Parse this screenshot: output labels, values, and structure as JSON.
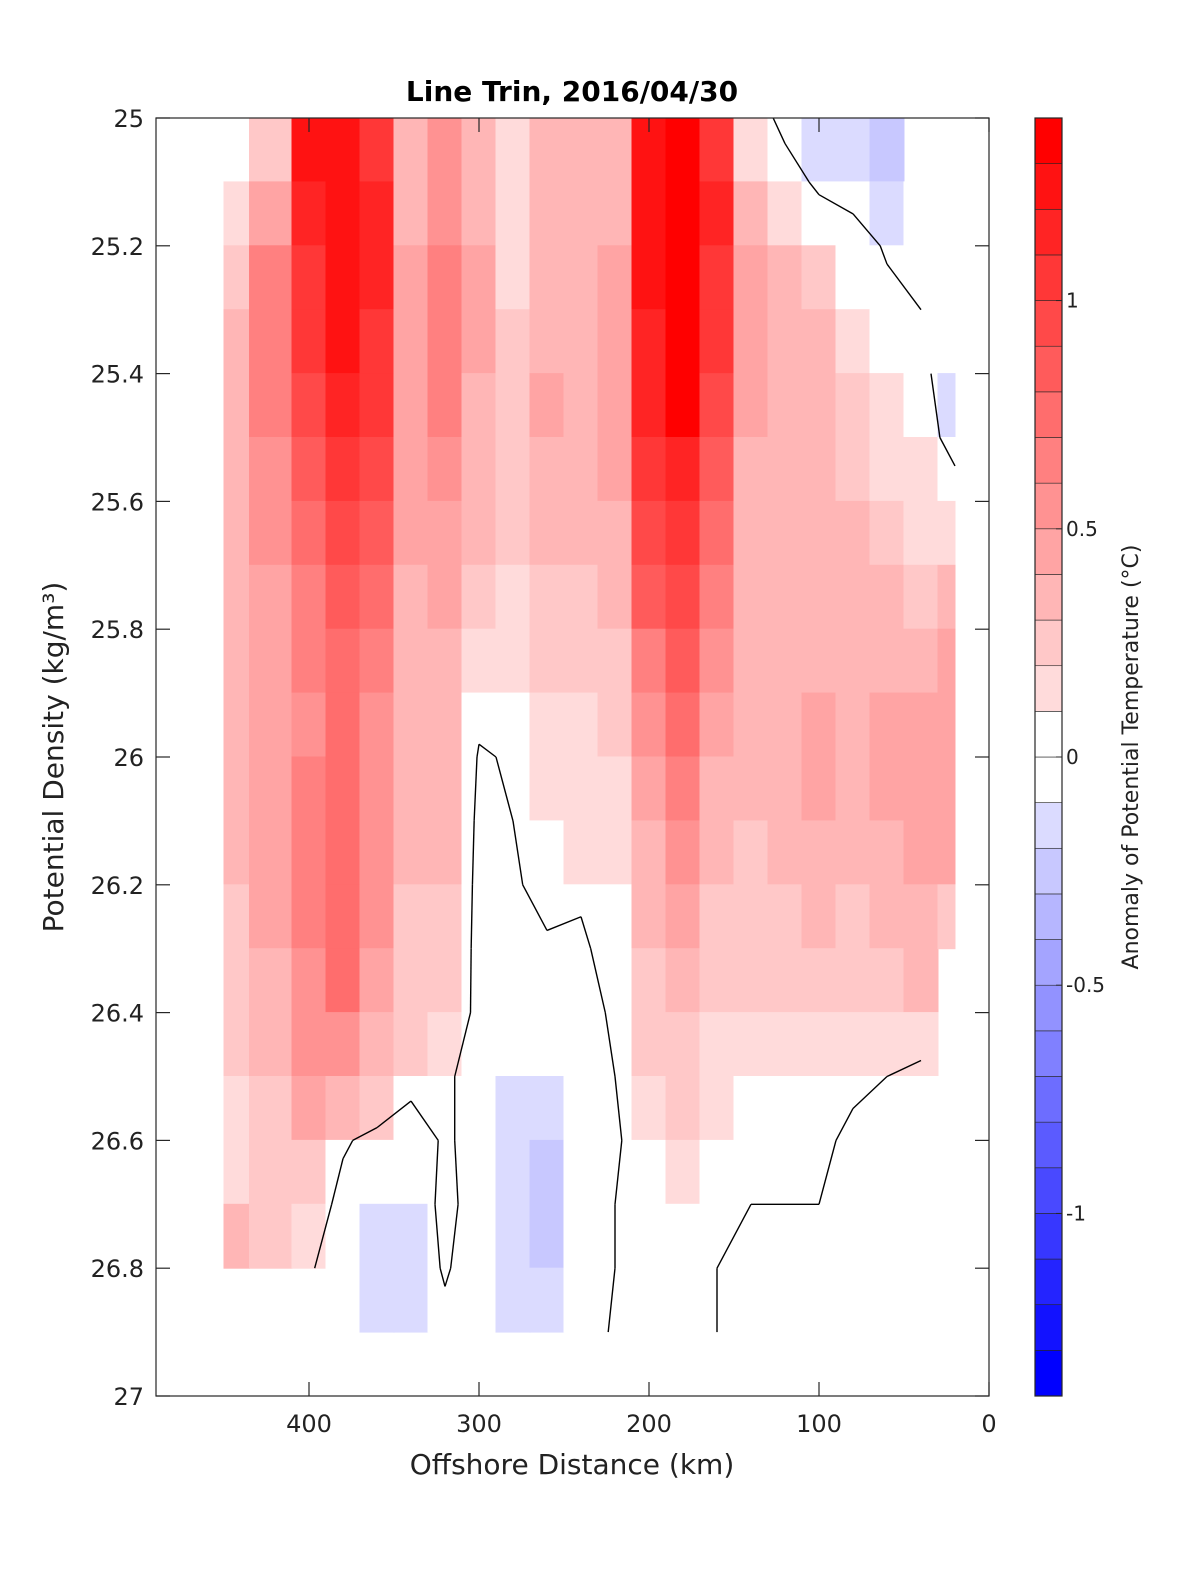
{
  "chart_data": {
    "type": "heatmap",
    "title": "Line Trin, 2016/04/30",
    "xlabel": "Offshore Distance (km)",
    "ylabel": "Potential Density (kg/m³)",
    "xlim": [
      490,
      0
    ],
    "ylim": [
      25,
      27
    ],
    "x_ticks": [
      400,
      300,
      200,
      100,
      0
    ],
    "y_ticks": [
      25,
      25.2,
      25.4,
      25.6,
      25.8,
      26,
      26.2,
      26.4,
      26.6,
      26.8,
      27
    ],
    "colorbar": {
      "label": "Anomaly of Potential Temperature (°C)",
      "range": [
        -1.4,
        1.4
      ],
      "step": 0.1,
      "ticks": [
        1,
        0.5,
        0,
        -0.5,
        -1
      ],
      "colors": {
        "positive": "#ff0000",
        "negative": "#0000ff",
        "zero": "#ffffff"
      }
    },
    "grid": false,
    "x_stations": [
      450,
      420,
      400,
      380,
      360,
      340,
      320,
      300,
      280,
      260,
      240,
      220,
      200,
      180,
      160,
      140,
      120,
      100,
      80,
      60,
      40,
      20
    ],
    "y_levels": [
      25.0,
      25.1,
      25.2,
      25.3,
      25.4,
      25.5,
      25.6,
      25.7,
      25.8,
      25.9,
      26.0,
      26.1,
      26.2,
      26.3,
      26.4,
      26.5,
      26.6,
      26.7,
      26.8,
      26.9
    ],
    "profiles": [
      {
        "x": 450,
        "bottom": 26.8,
        "values": [
          null,
          0.15,
          0.25,
          0.3,
          0.35,
          0.38,
          0.38,
          0.35,
          0.32,
          0.3,
          0.3,
          0.3,
          0.28,
          0.25,
          0.22,
          0.18,
          0.15,
          0.35,
          0.55,
          null
        ]
      },
      {
        "x": 420,
        "bottom": 26.8,
        "values": [
          0.2,
          0.45,
          0.6,
          0.65,
          0.6,
          0.55,
          0.5,
          0.45,
          0.42,
          0.4,
          0.4,
          0.42,
          0.4,
          0.38,
          0.3,
          0.25,
          0.2,
          0.25,
          0.3,
          null
        ]
      },
      {
        "x": 400,
        "bottom": 26.8,
        "values": [
          1.2,
          1.1,
          1.05,
          1.0,
          0.95,
          0.85,
          0.75,
          0.65,
          0.6,
          0.58,
          0.6,
          0.62,
          0.6,
          0.58,
          0.52,
          0.4,
          0.25,
          0.1,
          0.02,
          null
        ]
      },
      {
        "x": 380,
        "bottom": 26.9,
        "values": [
          1.2,
          1.25,
          1.2,
          1.2,
          1.1,
          1.0,
          0.95,
          0.85,
          0.78,
          0.72,
          0.72,
          0.75,
          0.74,
          0.7,
          0.55,
          0.35,
          0.02,
          -0.05,
          -0.1,
          -0.15
        ]
      },
      {
        "x": 360,
        "bottom": 26.9,
        "values": [
          1.0,
          1.1,
          1.1,
          1.05,
          1.0,
          0.9,
          0.8,
          0.7,
          0.62,
          0.58,
          0.55,
          0.52,
          0.5,
          0.45,
          0.35,
          0.2,
          -0.05,
          -0.15,
          -0.2,
          -0.25
        ]
      },
      {
        "x": 340,
        "bottom": 26.9,
        "values": [
          0.3,
          0.35,
          0.4,
          0.45,
          0.45,
          0.42,
          0.4,
          0.38,
          0.36,
          0.34,
          0.32,
          0.3,
          0.28,
          0.25,
          0.2,
          0.05,
          -0.08,
          -0.12,
          -0.12,
          -0.1
        ]
      },
      {
        "x": 320,
        "bottom": 26.9,
        "values": [
          0.5,
          0.55,
          0.6,
          0.65,
          0.6,
          0.55,
          0.48,
          0.42,
          0.38,
          0.35,
          0.32,
          0.3,
          0.25,
          0.2,
          0.15,
          0.02,
          0.02,
          0.05,
          0.02,
          -0.05
        ]
      },
      {
        "x": 300,
        "bottom": 26.9,
        "values": [
          0.35,
          0.38,
          0.4,
          0.4,
          0.38,
          0.36,
          0.32,
          0.25,
          0.18,
          0.08,
          -0.02,
          -0.05,
          -0.06,
          -0.06,
          -0.05,
          -0.05,
          -0.05,
          -0.08,
          -0.1,
          -0.08
        ]
      },
      {
        "x": 280,
        "bottom": 26.9,
        "values": [
          0.12,
          0.15,
          0.18,
          0.22,
          0.25,
          0.22,
          0.2,
          0.15,
          0.1,
          0.05,
          0.02,
          0.0,
          -0.02,
          -0.05,
          -0.1,
          -0.12,
          -0.12,
          -0.12,
          -0.12,
          -0.1
        ]
      },
      {
        "x": 260,
        "bottom": 26.9,
        "values": [
          0.3,
          0.32,
          0.35,
          0.38,
          0.4,
          0.38,
          0.32,
          0.25,
          0.2,
          0.15,
          0.12,
          0.08,
          0.05,
          -0.02,
          -0.08,
          -0.12,
          -0.22,
          -0.22,
          -0.15,
          -0.1
        ]
      },
      {
        "x": 240,
        "bottom": 26.9,
        "values": [
          0.3,
          0.32,
          0.35,
          0.35,
          0.35,
          0.32,
          0.3,
          0.25,
          0.2,
          0.18,
          0.12,
          0.1,
          0.02,
          -0.02,
          -0.05,
          -0.1,
          -0.1,
          -0.1,
          -0.08,
          -0.08
        ]
      },
      {
        "x": 220,
        "bottom": 26.9,
        "values": [
          0.3,
          0.35,
          0.4,
          0.42,
          0.42,
          0.4,
          0.38,
          0.32,
          0.28,
          0.22,
          0.15,
          0.1,
          0.08,
          0.05,
          0.02,
          0.0,
          -0.02,
          0.0,
          0.0,
          0.02
        ]
      },
      {
        "x": 200,
        "bottom": 26.9,
        "values": [
          1.2,
          1.25,
          1.2,
          1.15,
          1.1,
          1.0,
          0.9,
          0.8,
          0.65,
          0.55,
          0.45,
          0.38,
          0.3,
          0.25,
          0.2,
          0.12,
          0.08,
          0.05,
          0.02,
          0.02
        ]
      },
      {
        "x": 180,
        "bottom": 26.9,
        "values": [
          1.35,
          1.4,
          1.35,
          1.35,
          1.3,
          1.15,
          1.05,
          0.95,
          0.82,
          0.72,
          0.62,
          0.52,
          0.45,
          0.35,
          0.28,
          0.2,
          0.12,
          0.08,
          0.04,
          0.02
        ]
      },
      {
        "x": 160,
        "bottom": 26.9,
        "values": [
          1.0,
          1.1,
          1.05,
          1.0,
          0.95,
          0.85,
          0.75,
          0.65,
          0.55,
          0.45,
          0.38,
          0.32,
          0.25,
          0.2,
          0.15,
          0.1,
          0.05,
          0.02,
          0.0,
          0.0
        ]
      },
      {
        "x": 140,
        "bottom": 26.9,
        "values": [
          0.15,
          0.3,
          0.45,
          0.45,
          0.4,
          0.38,
          0.35,
          0.32,
          0.3,
          0.3,
          0.3,
          0.28,
          0.25,
          0.22,
          0.15,
          0.08,
          0.02,
          0.0,
          0.0,
          0.0
        ]
      },
      {
        "x": 120,
        "bottom": 26.9,
        "values": [
          -0.08,
          0.12,
          0.3,
          0.35,
          0.32,
          0.3,
          0.3,
          0.3,
          0.32,
          0.35,
          0.38,
          0.35,
          0.28,
          0.2,
          0.12,
          0.05,
          0.02,
          0.0,
          0.0,
          0.0
        ]
      },
      {
        "x": 100,
        "bottom": 26.9,
        "values": [
          -0.15,
          -0.05,
          0.2,
          0.3,
          0.32,
          0.32,
          0.32,
          0.35,
          0.38,
          0.4,
          0.42,
          0.38,
          0.3,
          0.2,
          0.1,
          0.03,
          0.02,
          0.0,
          0.0,
          0.0
        ]
      },
      {
        "x": 80,
        "bottom": 26.9,
        "values": [
          -0.15,
          -0.08,
          0.08,
          0.18,
          0.25,
          0.28,
          0.3,
          0.32,
          0.35,
          0.35,
          0.35,
          0.32,
          0.28,
          0.2,
          0.12,
          0.02,
          -0.02,
          0.0,
          0.0,
          0.0
        ]
      },
      {
        "x": 60,
        "bottom": 26.9,
        "values": [
          -0.25,
          -0.12,
          -0.02,
          0.05,
          0.12,
          0.18,
          0.22,
          0.3,
          0.38,
          0.42,
          0.42,
          0.38,
          0.3,
          0.22,
          0.12,
          0.0,
          -0.08,
          -0.05,
          0.0,
          0.0
        ]
      },
      {
        "x": 40,
        "bottom": 26.9,
        "values": [
          null,
          -0.05,
          0.0,
          0.0,
          0.05,
          0.1,
          0.15,
          0.25,
          0.35,
          0.42,
          0.45,
          0.42,
          0.38,
          0.3,
          0.15,
          -0.05,
          -0.1,
          -0.05,
          0.0,
          null
        ]
      },
      {
        "x": 20,
        "bottom": 26.3,
        "values": [
          null,
          null,
          null,
          null,
          -0.12,
          -0.08,
          0.1,
          0.3,
          0.4,
          0.45,
          0.45,
          0.42,
          0.25,
          null,
          null,
          null,
          null,
          null,
          null,
          null
        ]
      }
    ]
  }
}
